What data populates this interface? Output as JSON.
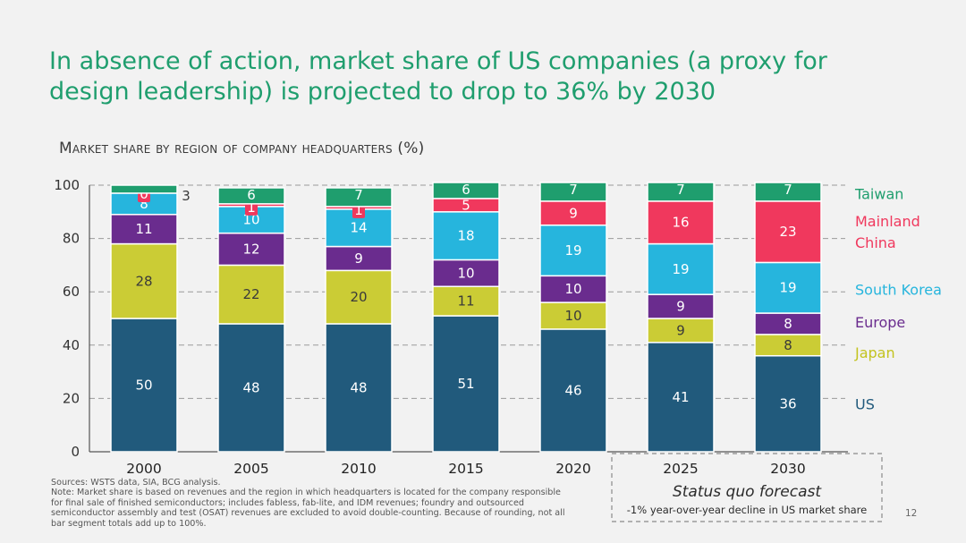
{
  "title": {
    "line1": "In absence of action, market share of US companies (a proxy for",
    "line2": "design leadership) is projected to drop to 36% by 2030"
  },
  "subtitle": "Market share by region of company headquarters (%)",
  "notes": {
    "sources": "Sources: WSTS data, SIA, BCG analysis.",
    "lines": [
      "Note: Market share is based on revenues and the region in which headquarters is located for the company responsible",
      "for final sale of finished semiconductors; includes fabless, fab-lite, and IDM revenues; foundry and outsourced",
      "semiconductor assembly and test (OSAT) revenues are excluded to avoid double-counting. Because of rounding, not all",
      "bar segment totals add up to 100%."
    ]
  },
  "forecast": {
    "label": "Status quo forecast",
    "sublabel": "-1% year-over-year decline in US market share"
  },
  "page_number": "12",
  "colors": {
    "US": "#215a7c",
    "Japan": "#cbcc35",
    "Europe": "#6a2c8e",
    "South Korea": "#26b5dd",
    "Mainland China": "#f0385d",
    "Taiwan": "#1f9e6e"
  },
  "chart_data": {
    "type": "bar",
    "stacked": true,
    "categories": [
      "2000",
      "2005",
      "2010",
      "2015",
      "2020",
      "2025",
      "2030"
    ],
    "forecast_categories": [
      "2025",
      "2030"
    ],
    "ylim": [
      0,
      100
    ],
    "yticks": [
      0,
      20,
      40,
      60,
      80,
      100
    ],
    "grid": true,
    "series": [
      {
        "name": "US",
        "legend": [
          "US"
        ],
        "values": [
          50,
          48,
          48,
          51,
          46,
          41,
          36
        ]
      },
      {
        "name": "Japan",
        "legend": [
          "Japan"
        ],
        "values": [
          28,
          22,
          20,
          11,
          10,
          9,
          8
        ]
      },
      {
        "name": "Europe",
        "legend": [
          "Europe"
        ],
        "values": [
          11,
          12,
          9,
          10,
          10,
          9,
          8
        ]
      },
      {
        "name": "South Korea",
        "legend": [
          "South Korea"
        ],
        "values": [
          8,
          10,
          14,
          18,
          19,
          19,
          19
        ]
      },
      {
        "name": "Mainland China",
        "legend": [
          "Mainland",
          "China"
        ],
        "values": [
          0,
          1,
          1,
          5,
          9,
          16,
          23
        ]
      },
      {
        "name": "Taiwan",
        "legend": [
          "Taiwan"
        ],
        "values": [
          3,
          6,
          7,
          6,
          7,
          7,
          7
        ]
      }
    ]
  }
}
